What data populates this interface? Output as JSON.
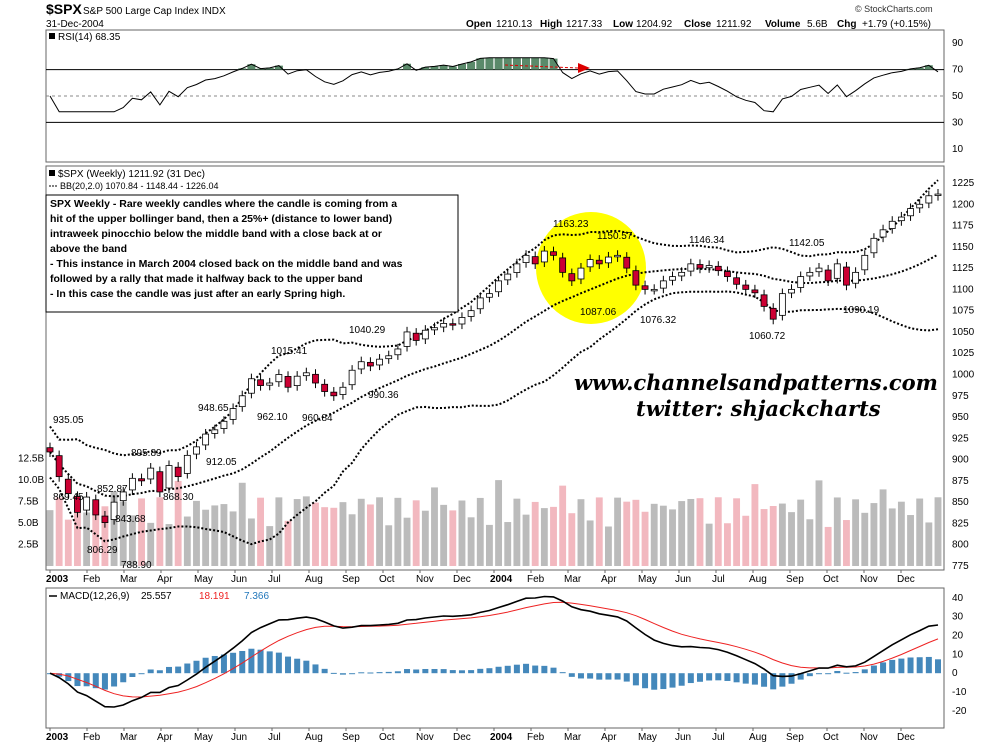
{
  "header": {
    "symbol": "$SPX",
    "name": "S&P 500 Large Cap Index INDX",
    "date": "31-Dec-2004",
    "brand": "© StockCharts.com",
    "quote": {
      "open_label": "Open",
      "open": "1210.13",
      "high_label": "High",
      "high": "1217.33",
      "low_label": "Low",
      "low": "1204.92",
      "close_label": "Close",
      "close": "1211.92",
      "volume_label": "Volume",
      "volume": "5.6B",
      "chg_label": "Chg",
      "chg": "+1.79 (+0.15%)"
    }
  },
  "colors": {
    "up": "#ffffff",
    "down": "#cc0033",
    "vol_up": "#bbbbbb",
    "vol_down": "#f2b8bf",
    "macd_line": "#000000",
    "signal": "#ee2222",
    "hist": "#4488bb",
    "highlight": "#ffff00",
    "rsi_fill": "#5a8a6a"
  },
  "rsi_panel": {
    "label": "RSI(14) 68.35",
    "ticks": [
      "90",
      "70",
      "50",
      "30",
      "10"
    ]
  },
  "price_panel": {
    "legend1": "$SPX (Weekly) 1211.92 (31 Dec)",
    "legend2": "BB(20,2.0) 1070.84 - 1148.44 - 1226.04",
    "price_ticks": [
      "1225",
      "1200",
      "1175",
      "1150",
      "1125",
      "1100",
      "1075",
      "1050",
      "1025",
      "1000",
      "975",
      "950",
      "925",
      "900",
      "875",
      "850",
      "825",
      "800",
      "775"
    ],
    "volume_ticks": [
      "12.5B",
      "10.0B",
      "7.5B",
      "5.0B",
      "2.5B"
    ],
    "annotation_lines": [
      "SPX Weekly - Rare weekly candles where the candle is coming from a",
      "hit of the upper bollinger band, then a 25%+ (distance to lower band)",
      "intraweek pinocchio below the middle band with a close back at or",
      "above the band",
      "- This instance in March 2004 closed back on the middle band and was",
      "followed by a rally that made it halfway back to the upper band",
      "- In this case the candle was just after an early Spring high."
    ],
    "watermark1": "www.channelsandpatterns.com",
    "watermark2": "twitter: shjackcharts",
    "price_labels": [
      "935.05",
      "869.45",
      "852.87",
      "895.89",
      "843.68",
      "868.30",
      "806.29",
      "788.90",
      "948.65",
      "912.05",
      "1015.41",
      "962.10",
      "960.84",
      "1040.29",
      "990.36",
      "1163.23",
      "1150.57",
      "1087.06",
      "1076.32",
      "1146.34",
      "1060.72",
      "1142.05",
      "1090.19"
    ]
  },
  "macd_panel": {
    "label": "MACD(12,26,9)",
    "macd": "25.557",
    "signal": "18.191",
    "hist": "7.366",
    "ticks": [
      "40",
      "30",
      "20",
      "10",
      "0",
      "-10",
      "-20"
    ]
  },
  "x_axis": {
    "labels": [
      "2003",
      "Feb",
      "Mar",
      "Apr",
      "May",
      "Jun",
      "Jul",
      "Aug",
      "Sep",
      "Oct",
      "Nov",
      "Dec",
      "2004",
      "Feb",
      "Mar",
      "Apr",
      "May",
      "Jun",
      "Jul",
      "Aug",
      "Sep",
      "Oct",
      "Nov",
      "Dec"
    ]
  },
  "chart_data": {
    "type": "candlestick",
    "title": "$SPX S&P 500 Large Cap Index INDX (Weekly)",
    "x_range": [
      "2003-01",
      "2004-12-31"
    ],
    "price_range": [
      775,
      1240
    ],
    "weekly_close_approx": [
      909,
      880,
      860,
      838,
      856,
      835,
      826,
      850,
      862,
      878,
      875,
      890,
      862,
      893,
      880,
      905,
      915,
      930,
      935,
      945,
      960,
      975,
      995,
      987,
      990,
      1000,
      985,
      998,
      1002,
      990,
      980,
      975,
      985,
      1005,
      1015,
      1010,
      1018,
      1022,
      1030,
      1050,
      1040,
      1052,
      1055,
      1060,
      1058,
      1067,
      1075,
      1090,
      1095,
      1110,
      1118,
      1130,
      1140,
      1130,
      1145,
      1140,
      1120,
      1110,
      1125,
      1135,
      1130,
      1138,
      1140,
      1125,
      1105,
      1100,
      1100,
      1110,
      1115,
      1120,
      1130,
      1125,
      1128,
      1122,
      1115,
      1106,
      1100,
      1096,
      1080,
      1065,
      1095,
      1100,
      1115,
      1120,
      1125,
      1110,
      1130,
      1105,
      1120,
      1140,
      1160,
      1170,
      1180,
      1185,
      1195,
      1200,
      1210,
      1212
    ],
    "bollinger": {
      "period": 20,
      "stddev": 2.0,
      "lower": 1070.84,
      "middle": 1148.44,
      "upper": 1226.04
    },
    "highlight": {
      "period": "Feb-Mar 2004",
      "low": 1087.06,
      "high": 1163.23
    },
    "rsi": {
      "period": 14,
      "last": 68.35,
      "range": [
        0,
        100
      ],
      "levels": [
        70,
        50,
        30
      ]
    },
    "macd": {
      "fast": 12,
      "slow": 26,
      "signal_period": 9,
      "macd": 25.557,
      "signal": 18.191,
      "histogram": 7.366,
      "range": [
        -28,
        42
      ]
    },
    "volume_range_B": [
      0,
      13.5
    ]
  }
}
